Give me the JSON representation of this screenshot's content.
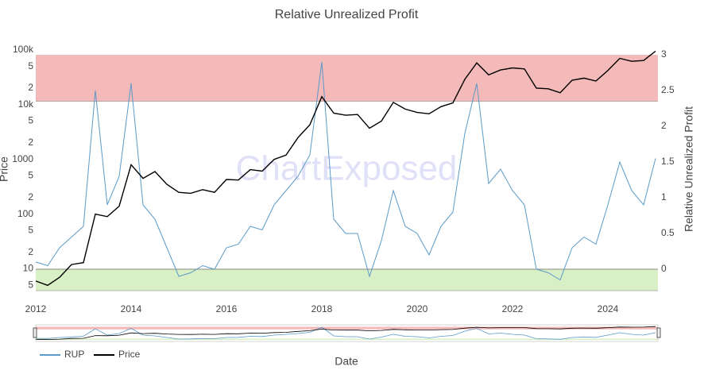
{
  "chart_data": {
    "type": "line",
    "title": "Relative Unrealized Profit",
    "xlabel": "Date",
    "ylabel": "Price",
    "y2label": "Relative Unrealized Profit",
    "watermark": "ChartExposed",
    "log_y": true,
    "legend": "bottom-left",
    "x": [
      2012.0,
      2012.25,
      2012.5,
      2012.75,
      2013.0,
      2013.25,
      2013.5,
      2013.75,
      2014.0,
      2014.25,
      2014.5,
      2014.75,
      2015.0,
      2015.25,
      2015.5,
      2015.75,
      2016.0,
      2016.25,
      2016.5,
      2016.75,
      2017.0,
      2017.25,
      2017.5,
      2017.75,
      2018.0,
      2018.25,
      2018.5,
      2018.75,
      2019.0,
      2019.25,
      2019.5,
      2019.75,
      2020.0,
      2020.25,
      2020.5,
      2020.75,
      2021.0,
      2021.25,
      2021.5,
      2021.75,
      2022.0,
      2022.25,
      2022.5,
      2022.75,
      2023.0,
      2023.25,
      2023.5,
      2023.75,
      2024.0,
      2024.25,
      2024.5,
      2024.75,
      2025.0
    ],
    "xlim": [
      2012,
      2025.05
    ],
    "xticks": [
      2012,
      2014,
      2016,
      2018,
      2020,
      2022,
      2024
    ],
    "ylim": [
      4,
      110000
    ],
    "yticks": [
      5,
      10,
      {
        "value": 20,
        "label": "2"
      },
      {
        "value": 50,
        "label": "5"
      },
      100,
      {
        "value": 200,
        "label": "2"
      },
      {
        "value": 500,
        "label": "5"
      },
      1000,
      {
        "value": 2000,
        "label": "2"
      },
      {
        "value": 5000,
        "label": "5"
      },
      {
        "value": 10000,
        "label": "10k"
      },
      {
        "value": 20000,
        "label": "2"
      },
      {
        "value": 50000,
        "label": "5"
      },
      {
        "value": 100000,
        "label": "100k"
      }
    ],
    "y2lim": [
      -0.3,
      3.1
    ],
    "y2ticks": [
      0,
      0.5,
      1,
      1.5,
      2,
      2.5,
      3
    ],
    "bands": [
      {
        "from": 2.35,
        "to": 3,
        "color": "#f4b9b9"
      },
      {
        "from": -0.3,
        "to": 0,
        "color": "#d9efc6"
      }
    ],
    "series": [
      {
        "name": "RUP",
        "color": "#5b9bc8",
        "axis": "y2",
        "values": [
          0.1,
          0.05,
          0.3,
          0.45,
          0.6,
          2.5,
          0.9,
          1.3,
          2.6,
          0.9,
          0.7,
          0.3,
          -0.1,
          -0.05,
          0.05,
          0.0,
          0.3,
          0.35,
          0.6,
          0.55,
          0.9,
          1.1,
          1.3,
          1.6,
          2.9,
          0.7,
          0.5,
          0.5,
          -0.1,
          0.4,
          1.1,
          0.6,
          0.5,
          0.2,
          0.6,
          0.8,
          1.9,
          2.6,
          1.2,
          1.4,
          1.1,
          0.9,
          0.0,
          -0.05,
          -0.15,
          0.3,
          0.45,
          0.35,
          0.9,
          1.5,
          1.1,
          0.9,
          1.55
        ]
      },
      {
        "name": "Price",
        "color": "#000000",
        "values": [
          6,
          5,
          7,
          12,
          13,
          100,
          90,
          140,
          800,
          450,
          600,
          350,
          250,
          240,
          280,
          250,
          430,
          420,
          650,
          610,
          1000,
          1200,
          2500,
          4300,
          14000,
          7000,
          6400,
          6600,
          3700,
          5000,
          11000,
          8300,
          7200,
          6800,
          9200,
          10800,
          29000,
          58000,
          35000,
          43000,
          47000,
          45000,
          20000,
          19500,
          16500,
          28000,
          30500,
          27000,
          42000,
          70000,
          62000,
          64000,
          95000
        ]
      }
    ]
  }
}
